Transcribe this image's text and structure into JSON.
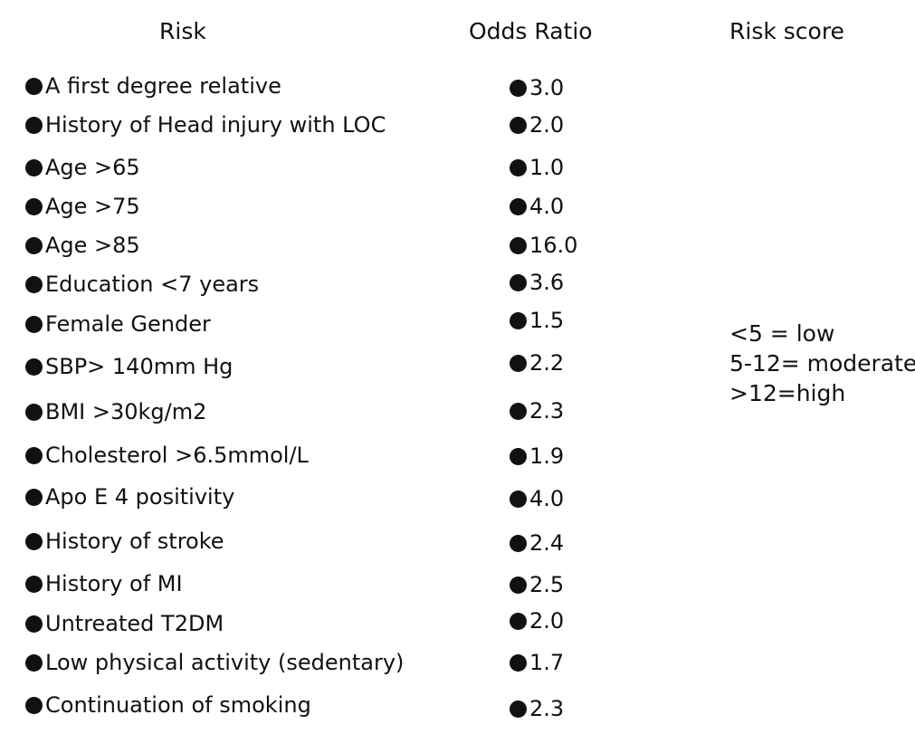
{
  "headers": {
    "risk": "Risk",
    "odds_ratio": "Odds Ratio",
    "risk_score": "Risk score"
  },
  "rows": [
    {
      "risk": "A first degree relative",
      "odds": "3.0"
    },
    {
      "risk": "History of Head injury with LOC",
      "odds": "2.0"
    },
    {
      "risk": "Age >65",
      "odds": "1.0"
    },
    {
      "risk": "Age >75",
      "odds": "4.0"
    },
    {
      "risk": "Age >85",
      "odds": "16.0"
    },
    {
      "risk": "Education <7 years",
      "odds": "3.6"
    },
    {
      "risk": "Female Gender",
      "odds": "1.5"
    },
    {
      "risk": "SBP> 140mm Hg",
      "odds": "2.2"
    },
    {
      "risk": "BMI >30kg/m2",
      "odds": "2.3"
    },
    {
      "risk": "Cholesterol >6.5mmol/L",
      "odds": "1.9"
    },
    {
      "risk": "Apo E 4 positivity",
      "odds": "4.0"
    },
    {
      "risk": "History of stroke",
      "odds": "2.4"
    },
    {
      "risk": "History of MI",
      "odds": "2.5"
    },
    {
      "risk": "Untreated T2DM",
      "odds": "2.0"
    },
    {
      "risk": "Low physical activity (sedentary)",
      "odds": "1.7"
    },
    {
      "risk": "Continuation of smoking",
      "odds": "2.3"
    }
  ],
  "risk_score_legend": [
    "<5 = low",
    "5-12= moderate",
    ">12=high"
  ]
}
